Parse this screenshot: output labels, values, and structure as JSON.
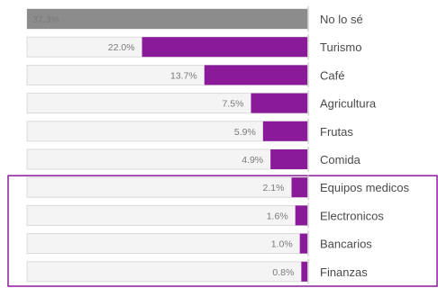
{
  "chart_data": {
    "type": "bar",
    "orientation": "horizontal",
    "categories": [
      "No lo sé",
      "Turismo",
      "Café",
      "Agricultura",
      "Frutas",
      "Comida",
      "Equipos medicos",
      "Electronicos",
      "Bancarios",
      "Finanzas"
    ],
    "values": [
      37.3,
      22.0,
      13.7,
      7.5,
      5.9,
      4.9,
      2.1,
      1.6,
      1.0,
      0.8
    ],
    "value_labels": [
      "37.3%",
      "22.0%",
      "13.7%",
      "7.5%",
      "5.9%",
      "4.9%",
      "2.1%",
      "1.6%",
      "1.0%",
      "0.8%"
    ],
    "xlim": [
      0,
      37.3
    ],
    "grid": false,
    "legend": "none",
    "highlighted_categories": [
      "Equipos medicos",
      "Electronicos",
      "Bancarios",
      "Finanzas"
    ],
    "colors": {
      "first_bar": "#8c8c8c",
      "bars": "#8b1a9a",
      "background_track": "#f4f4f4",
      "highlight_box": "#8b1a9a"
    }
  }
}
